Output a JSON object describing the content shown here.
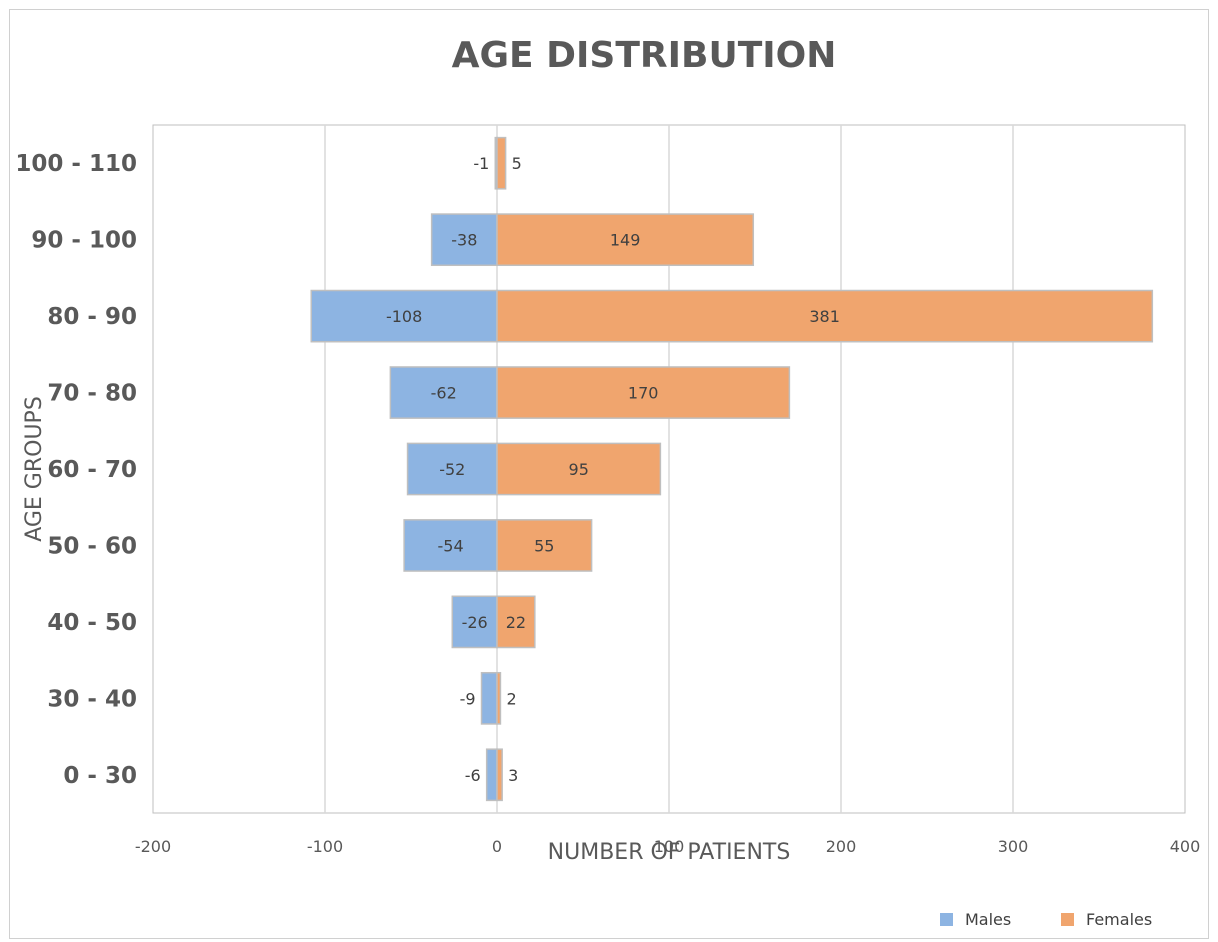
{
  "chart_data": {
    "type": "bar",
    "orientation": "horizontal",
    "title": "AGE DISTRIBUTION",
    "xlabel": "NUMBER OF PATIENTS",
    "ylabel": "AGE GROUPS",
    "categories": [
      "0 - 30",
      "30 - 40",
      "40 - 50",
      "50 - 60",
      "60 - 70",
      "70 - 80",
      "80 - 90",
      "90 - 100",
      "100 - 110"
    ],
    "series": [
      {
        "name": "Males",
        "color": "#8db4e2",
        "values": [
          -6,
          -9,
          -26,
          -54,
          -52,
          -62,
          -108,
          -38,
          -1
        ]
      },
      {
        "name": "Females",
        "color": "#f0a56e",
        "values": [
          3,
          2,
          22,
          55,
          95,
          170,
          381,
          149,
          5
        ]
      }
    ],
    "xlim": [
      -200,
      400
    ],
    "xticks": [
      -200,
      -100,
      0,
      100,
      200,
      300,
      400
    ],
    "xtick_labels": [
      "-200",
      "-100",
      "0",
      "100",
      "200",
      "300",
      "400"
    ],
    "grid": true,
    "stacked": true,
    "legend_position": "bottom-right"
  }
}
